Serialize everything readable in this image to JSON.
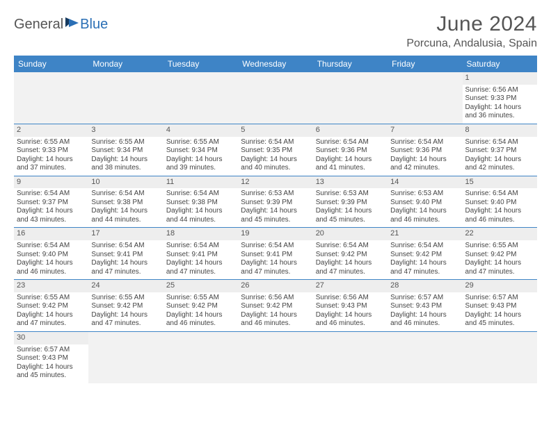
{
  "logo": {
    "part1": "General",
    "part2": "Blue"
  },
  "title": "June 2024",
  "location": "Porcuna, Andalusia, Spain",
  "colors": {
    "header_bg": "#3e84c6",
    "header_text": "#ffffff",
    "daynum_bg": "#eeeeee",
    "row_border": "#3e84c6",
    "logo_blue": "#2a6fb5",
    "logo_dark": "#163a5f"
  },
  "day_labels": [
    "Sunday",
    "Monday",
    "Tuesday",
    "Wednesday",
    "Thursday",
    "Friday",
    "Saturday"
  ],
  "weeks": [
    [
      {
        "empty": true
      },
      {
        "empty": true
      },
      {
        "empty": true
      },
      {
        "empty": true
      },
      {
        "empty": true
      },
      {
        "empty": true
      },
      {
        "day": "1",
        "sunrise": "Sunrise: 6:56 AM",
        "sunset": "Sunset: 9:33 PM",
        "daylight1": "Daylight: 14 hours",
        "daylight2": "and 36 minutes."
      }
    ],
    [
      {
        "day": "2",
        "sunrise": "Sunrise: 6:55 AM",
        "sunset": "Sunset: 9:33 PM",
        "daylight1": "Daylight: 14 hours",
        "daylight2": "and 37 minutes."
      },
      {
        "day": "3",
        "sunrise": "Sunrise: 6:55 AM",
        "sunset": "Sunset: 9:34 PM",
        "daylight1": "Daylight: 14 hours",
        "daylight2": "and 38 minutes."
      },
      {
        "day": "4",
        "sunrise": "Sunrise: 6:55 AM",
        "sunset": "Sunset: 9:34 PM",
        "daylight1": "Daylight: 14 hours",
        "daylight2": "and 39 minutes."
      },
      {
        "day": "5",
        "sunrise": "Sunrise: 6:54 AM",
        "sunset": "Sunset: 9:35 PM",
        "daylight1": "Daylight: 14 hours",
        "daylight2": "and 40 minutes."
      },
      {
        "day": "6",
        "sunrise": "Sunrise: 6:54 AM",
        "sunset": "Sunset: 9:36 PM",
        "daylight1": "Daylight: 14 hours",
        "daylight2": "and 41 minutes."
      },
      {
        "day": "7",
        "sunrise": "Sunrise: 6:54 AM",
        "sunset": "Sunset: 9:36 PM",
        "daylight1": "Daylight: 14 hours",
        "daylight2": "and 42 minutes."
      },
      {
        "day": "8",
        "sunrise": "Sunrise: 6:54 AM",
        "sunset": "Sunset: 9:37 PM",
        "daylight1": "Daylight: 14 hours",
        "daylight2": "and 42 minutes."
      }
    ],
    [
      {
        "day": "9",
        "sunrise": "Sunrise: 6:54 AM",
        "sunset": "Sunset: 9:37 PM",
        "daylight1": "Daylight: 14 hours",
        "daylight2": "and 43 minutes."
      },
      {
        "day": "10",
        "sunrise": "Sunrise: 6:54 AM",
        "sunset": "Sunset: 9:38 PM",
        "daylight1": "Daylight: 14 hours",
        "daylight2": "and 44 minutes."
      },
      {
        "day": "11",
        "sunrise": "Sunrise: 6:54 AM",
        "sunset": "Sunset: 9:38 PM",
        "daylight1": "Daylight: 14 hours",
        "daylight2": "and 44 minutes."
      },
      {
        "day": "12",
        "sunrise": "Sunrise: 6:53 AM",
        "sunset": "Sunset: 9:39 PM",
        "daylight1": "Daylight: 14 hours",
        "daylight2": "and 45 minutes."
      },
      {
        "day": "13",
        "sunrise": "Sunrise: 6:53 AM",
        "sunset": "Sunset: 9:39 PM",
        "daylight1": "Daylight: 14 hours",
        "daylight2": "and 45 minutes."
      },
      {
        "day": "14",
        "sunrise": "Sunrise: 6:53 AM",
        "sunset": "Sunset: 9:40 PM",
        "daylight1": "Daylight: 14 hours",
        "daylight2": "and 46 minutes."
      },
      {
        "day": "15",
        "sunrise": "Sunrise: 6:54 AM",
        "sunset": "Sunset: 9:40 PM",
        "daylight1": "Daylight: 14 hours",
        "daylight2": "and 46 minutes."
      }
    ],
    [
      {
        "day": "16",
        "sunrise": "Sunrise: 6:54 AM",
        "sunset": "Sunset: 9:40 PM",
        "daylight1": "Daylight: 14 hours",
        "daylight2": "and 46 minutes."
      },
      {
        "day": "17",
        "sunrise": "Sunrise: 6:54 AM",
        "sunset": "Sunset: 9:41 PM",
        "daylight1": "Daylight: 14 hours",
        "daylight2": "and 47 minutes."
      },
      {
        "day": "18",
        "sunrise": "Sunrise: 6:54 AM",
        "sunset": "Sunset: 9:41 PM",
        "daylight1": "Daylight: 14 hours",
        "daylight2": "and 47 minutes."
      },
      {
        "day": "19",
        "sunrise": "Sunrise: 6:54 AM",
        "sunset": "Sunset: 9:41 PM",
        "daylight1": "Daylight: 14 hours",
        "daylight2": "and 47 minutes."
      },
      {
        "day": "20",
        "sunrise": "Sunrise: 6:54 AM",
        "sunset": "Sunset: 9:42 PM",
        "daylight1": "Daylight: 14 hours",
        "daylight2": "and 47 minutes."
      },
      {
        "day": "21",
        "sunrise": "Sunrise: 6:54 AM",
        "sunset": "Sunset: 9:42 PM",
        "daylight1": "Daylight: 14 hours",
        "daylight2": "and 47 minutes."
      },
      {
        "day": "22",
        "sunrise": "Sunrise: 6:55 AM",
        "sunset": "Sunset: 9:42 PM",
        "daylight1": "Daylight: 14 hours",
        "daylight2": "and 47 minutes."
      }
    ],
    [
      {
        "day": "23",
        "sunrise": "Sunrise: 6:55 AM",
        "sunset": "Sunset: 9:42 PM",
        "daylight1": "Daylight: 14 hours",
        "daylight2": "and 47 minutes."
      },
      {
        "day": "24",
        "sunrise": "Sunrise: 6:55 AM",
        "sunset": "Sunset: 9:42 PM",
        "daylight1": "Daylight: 14 hours",
        "daylight2": "and 47 minutes."
      },
      {
        "day": "25",
        "sunrise": "Sunrise: 6:55 AM",
        "sunset": "Sunset: 9:42 PM",
        "daylight1": "Daylight: 14 hours",
        "daylight2": "and 46 minutes."
      },
      {
        "day": "26",
        "sunrise": "Sunrise: 6:56 AM",
        "sunset": "Sunset: 9:42 PM",
        "daylight1": "Daylight: 14 hours",
        "daylight2": "and 46 minutes."
      },
      {
        "day": "27",
        "sunrise": "Sunrise: 6:56 AM",
        "sunset": "Sunset: 9:43 PM",
        "daylight1": "Daylight: 14 hours",
        "daylight2": "and 46 minutes."
      },
      {
        "day": "28",
        "sunrise": "Sunrise: 6:57 AM",
        "sunset": "Sunset: 9:43 PM",
        "daylight1": "Daylight: 14 hours",
        "daylight2": "and 46 minutes."
      },
      {
        "day": "29",
        "sunrise": "Sunrise: 6:57 AM",
        "sunset": "Sunset: 9:43 PM",
        "daylight1": "Daylight: 14 hours",
        "daylight2": "and 45 minutes."
      }
    ],
    [
      {
        "day": "30",
        "sunrise": "Sunrise: 6:57 AM",
        "sunset": "Sunset: 9:43 PM",
        "daylight1": "Daylight: 14 hours",
        "daylight2": "and 45 minutes."
      },
      {
        "empty": true
      },
      {
        "empty": true
      },
      {
        "empty": true
      },
      {
        "empty": true
      },
      {
        "empty": true
      },
      {
        "empty": true
      }
    ]
  ]
}
